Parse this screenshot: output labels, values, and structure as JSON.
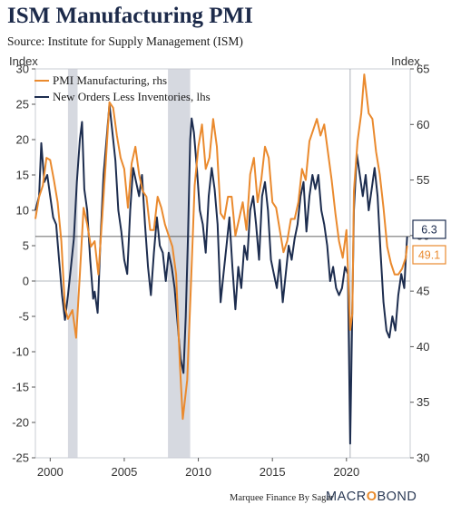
{
  "title": "ISM Manufacturing PMI",
  "subtitle": "Source: Institute for Supply Management (ISM)",
  "footer": {
    "credit": "Marquee Finance By Sagar",
    "brand_a": "MACR",
    "brand_o": "O",
    "brand_b": "BOND"
  },
  "colors": {
    "pmi": "#ea8a2e",
    "orders": "#1d2d4f",
    "recession": "#d6d9e0",
    "callout_orange": "#ea8a2e",
    "callout_navy": "#1d2d4f"
  },
  "chart_data": {
    "type": "line",
    "left_axis": {
      "title": "Index",
      "min": -25,
      "max": 30,
      "ticks": [
        -25,
        -20,
        -15,
        -10,
        -5,
        0,
        5,
        10,
        15,
        20,
        25,
        30
      ]
    },
    "right_axis": {
      "title": "Index",
      "min": 30,
      "max": 65,
      "ticks": [
        30,
        35,
        40,
        45,
        50,
        55,
        60,
        65
      ]
    },
    "x_axis": {
      "min": 1999.0,
      "max": 2024.3,
      "ticks": [
        2000,
        2005,
        2010,
        2015,
        2020
      ]
    },
    "grid": false,
    "legend_position": "top-left",
    "recessions": [
      [
        2001.2,
        2001.85
      ],
      [
        2007.95,
        2009.45
      ]
    ],
    "callouts": {
      "left_value": "6.3",
      "right_value": "49.1"
    },
    "series": [
      {
        "name": "PMI Manufacturing, rhs",
        "axis": "right",
        "points": [
          [
            1999.0,
            51.5
          ],
          [
            1999.25,
            53.5
          ],
          [
            1999.5,
            54.5
          ],
          [
            1999.75,
            57.0
          ],
          [
            2000.0,
            56.8
          ],
          [
            2000.25,
            55.0
          ],
          [
            2000.5,
            53.0
          ],
          [
            2000.75,
            49.5
          ],
          [
            2001.0,
            43.5
          ],
          [
            2001.2,
            42.5
          ],
          [
            2001.5,
            43.3
          ],
          [
            2001.75,
            40.8
          ],
          [
            2002.0,
            46.5
          ],
          [
            2002.25,
            52.5
          ],
          [
            2002.5,
            51.0
          ],
          [
            2002.75,
            49.0
          ],
          [
            2003.0,
            49.5
          ],
          [
            2003.25,
            46.5
          ],
          [
            2003.5,
            51.5
          ],
          [
            2003.75,
            56.5
          ],
          [
            2004.0,
            62.0
          ],
          [
            2004.25,
            61.5
          ],
          [
            2004.5,
            59.0
          ],
          [
            2004.75,
            57.0
          ],
          [
            2005.0,
            56.0
          ],
          [
            2005.25,
            52.5
          ],
          [
            2005.5,
            56.5
          ],
          [
            2005.75,
            58.0
          ],
          [
            2006.0,
            55.5
          ],
          [
            2006.25,
            54.0
          ],
          [
            2006.5,
            53.5
          ],
          [
            2006.75,
            50.5
          ],
          [
            2007.0,
            50.5
          ],
          [
            2007.25,
            53.5
          ],
          [
            2007.5,
            52.5
          ],
          [
            2007.75,
            51.0
          ],
          [
            2008.0,
            50.0
          ],
          [
            2008.25,
            49.0
          ],
          [
            2008.5,
            46.5
          ],
          [
            2008.75,
            38.5
          ],
          [
            2008.95,
            33.5
          ],
          [
            2009.25,
            37.0
          ],
          [
            2009.5,
            45.5
          ],
          [
            2009.75,
            54.5
          ],
          [
            2010.0,
            58.0
          ],
          [
            2010.25,
            60.0
          ],
          [
            2010.5,
            56.0
          ],
          [
            2010.75,
            57.0
          ],
          [
            2011.0,
            60.5
          ],
          [
            2011.25,
            58.0
          ],
          [
            2011.5,
            52.0
          ],
          [
            2011.75,
            51.5
          ],
          [
            2012.0,
            53.5
          ],
          [
            2012.25,
            53.5
          ],
          [
            2012.5,
            50.0
          ],
          [
            2012.75,
            51.5
          ],
          [
            2013.0,
            53.0
          ],
          [
            2013.25,
            50.5
          ],
          [
            2013.5,
            55.5
          ],
          [
            2013.75,
            57.0
          ],
          [
            2014.0,
            53.0
          ],
          [
            2014.25,
            55.0
          ],
          [
            2014.5,
            58.0
          ],
          [
            2014.75,
            57.0
          ],
          [
            2015.0,
            53.0
          ],
          [
            2015.25,
            52.5
          ],
          [
            2015.5,
            50.5
          ],
          [
            2015.75,
            48.5
          ],
          [
            2016.0,
            49.5
          ],
          [
            2016.25,
            51.5
          ],
          [
            2016.5,
            51.5
          ],
          [
            2016.75,
            53.0
          ],
          [
            2017.0,
            56.0
          ],
          [
            2017.25,
            55.0
          ],
          [
            2017.5,
            58.5
          ],
          [
            2017.75,
            59.5
          ],
          [
            2018.0,
            60.5
          ],
          [
            2018.25,
            59.0
          ],
          [
            2018.5,
            60.0
          ],
          [
            2018.75,
            57.5
          ],
          [
            2019.0,
            55.0
          ],
          [
            2019.25,
            52.0
          ],
          [
            2019.5,
            49.5
          ],
          [
            2019.75,
            48.0
          ],
          [
            2020.0,
            50.5
          ],
          [
            2020.25,
            41.5
          ],
          [
            2020.4,
            43.0
          ],
          [
            2020.5,
            54.0
          ],
          [
            2020.75,
            58.5
          ],
          [
            2021.0,
            61.0
          ],
          [
            2021.2,
            64.5
          ],
          [
            2021.5,
            61.0
          ],
          [
            2021.75,
            60.5
          ],
          [
            2022.0,
            57.5
          ],
          [
            2022.25,
            55.5
          ],
          [
            2022.5,
            52.5
          ],
          [
            2022.75,
            49.0
          ],
          [
            2023.0,
            47.5
          ],
          [
            2023.25,
            46.5
          ],
          [
            2023.5,
            46.5
          ],
          [
            2023.75,
            47.0
          ],
          [
            2024.0,
            48.0
          ],
          [
            2024.1,
            49.1
          ]
        ]
      },
      {
        "name": "New Orders Less Inventories, lhs",
        "axis": "left",
        "points": [
          [
            1999.0,
            10.0
          ],
          [
            1999.25,
            12.0
          ],
          [
            1999.4,
            19.5
          ],
          [
            1999.6,
            14.0
          ],
          [
            1999.8,
            15.0
          ],
          [
            2000.0,
            12.0
          ],
          [
            2000.2,
            9.0
          ],
          [
            2000.4,
            8.0
          ],
          [
            2000.6,
            3.0
          ],
          [
            2000.8,
            -2.0
          ],
          [
            2001.0,
            -5.5
          ],
          [
            2001.2,
            -2.0
          ],
          [
            2001.4,
            2.0
          ],
          [
            2001.6,
            6.0
          ],
          [
            2001.8,
            14.0
          ],
          [
            2002.0,
            20.0
          ],
          [
            2002.15,
            22.5
          ],
          [
            2002.3,
            13.0
          ],
          [
            2002.5,
            10.0
          ],
          [
            2002.7,
            3.0
          ],
          [
            2002.9,
            -2.5
          ],
          [
            2003.0,
            -1.5
          ],
          [
            2003.2,
            -4.5
          ],
          [
            2003.4,
            6.0
          ],
          [
            2003.6,
            15.0
          ],
          [
            2003.8,
            20.0
          ],
          [
            2004.0,
            25.0
          ],
          [
            2004.2,
            21.0
          ],
          [
            2004.4,
            17.0
          ],
          [
            2004.6,
            10.0
          ],
          [
            2004.8,
            7.0
          ],
          [
            2005.0,
            3.0
          ],
          [
            2005.2,
            1.0
          ],
          [
            2005.4,
            10.0
          ],
          [
            2005.6,
            16.0
          ],
          [
            2005.8,
            14.0
          ],
          [
            2006.0,
            12.0
          ],
          [
            2006.2,
            15.0
          ],
          [
            2006.4,
            8.0
          ],
          [
            2006.6,
            2.0
          ],
          [
            2006.8,
            -2.0
          ],
          [
            2007.0,
            4.0
          ],
          [
            2007.2,
            9.0
          ],
          [
            2007.4,
            5.0
          ],
          [
            2007.6,
            4.0
          ],
          [
            2007.8,
            0.0
          ],
          [
            2008.0,
            4.0
          ],
          [
            2008.2,
            2.0
          ],
          [
            2008.4,
            -1.0
          ],
          [
            2008.6,
            -6.0
          ],
          [
            2008.8,
            -11.0
          ],
          [
            2009.0,
            -13.0
          ],
          [
            2009.15,
            -5.0
          ],
          [
            2009.3,
            6.0
          ],
          [
            2009.45,
            20.0
          ],
          [
            2009.55,
            23.0
          ],
          [
            2009.7,
            21.0
          ],
          [
            2009.9,
            16.0
          ],
          [
            2010.1,
            10.0
          ],
          [
            2010.3,
            8.0
          ],
          [
            2010.5,
            4.0
          ],
          [
            2010.7,
            12.0
          ],
          [
            2010.9,
            16.0
          ],
          [
            2011.1,
            13.0
          ],
          [
            2011.3,
            8.0
          ],
          [
            2011.5,
            -3.0
          ],
          [
            2011.7,
            1.0
          ],
          [
            2011.9,
            5.0
          ],
          [
            2012.1,
            9.0
          ],
          [
            2012.3,
            2.0
          ],
          [
            2012.5,
            -4.0
          ],
          [
            2012.7,
            2.0
          ],
          [
            2012.9,
            -1.0
          ],
          [
            2013.1,
            5.0
          ],
          [
            2013.3,
            3.0
          ],
          [
            2013.5,
            10.0
          ],
          [
            2013.7,
            12.0
          ],
          [
            2013.9,
            8.0
          ],
          [
            2014.1,
            3.0
          ],
          [
            2014.3,
            12.0
          ],
          [
            2014.5,
            14.0
          ],
          [
            2014.7,
            10.0
          ],
          [
            2014.9,
            3.0
          ],
          [
            2015.1,
            1.0
          ],
          [
            2015.3,
            -1.0
          ],
          [
            2015.5,
            3.0
          ],
          [
            2015.7,
            -3.0
          ],
          [
            2015.9,
            1.0
          ],
          [
            2016.1,
            5.0
          ],
          [
            2016.3,
            3.0
          ],
          [
            2016.5,
            6.0
          ],
          [
            2016.7,
            8.0
          ],
          [
            2016.9,
            12.0
          ],
          [
            2017.1,
            14.0
          ],
          [
            2017.3,
            7.0
          ],
          [
            2017.5,
            12.0
          ],
          [
            2017.7,
            15.0
          ],
          [
            2017.9,
            13.0
          ],
          [
            2018.1,
            15.0
          ],
          [
            2018.3,
            10.0
          ],
          [
            2018.5,
            8.0
          ],
          [
            2018.7,
            5.0
          ],
          [
            2018.9,
            0.0
          ],
          [
            2019.1,
            2.0
          ],
          [
            2019.3,
            -1.0
          ],
          [
            2019.5,
            -2.0
          ],
          [
            2019.7,
            -1.0
          ],
          [
            2019.9,
            2.0
          ],
          [
            2020.1,
            1.0
          ],
          [
            2020.25,
            -23.0
          ],
          [
            2020.35,
            -10.0
          ],
          [
            2020.5,
            10.0
          ],
          [
            2020.7,
            18.0
          ],
          [
            2020.9,
            15.0
          ],
          [
            2021.1,
            12.0
          ],
          [
            2021.3,
            15.0
          ],
          [
            2021.5,
            10.0
          ],
          [
            2021.7,
            13.0
          ],
          [
            2021.9,
            16.0
          ],
          [
            2022.1,
            12.0
          ],
          [
            2022.3,
            4.0
          ],
          [
            2022.5,
            -3.0
          ],
          [
            2022.7,
            -7.0
          ],
          [
            2022.9,
            -8.0
          ],
          [
            2023.1,
            -5.0
          ],
          [
            2023.3,
            -7.0
          ],
          [
            2023.5,
            -2.0
          ],
          [
            2023.7,
            1.0
          ],
          [
            2023.9,
            -1.0
          ],
          [
            2024.0,
            3.0
          ],
          [
            2024.1,
            6.3
          ]
        ]
      }
    ]
  }
}
